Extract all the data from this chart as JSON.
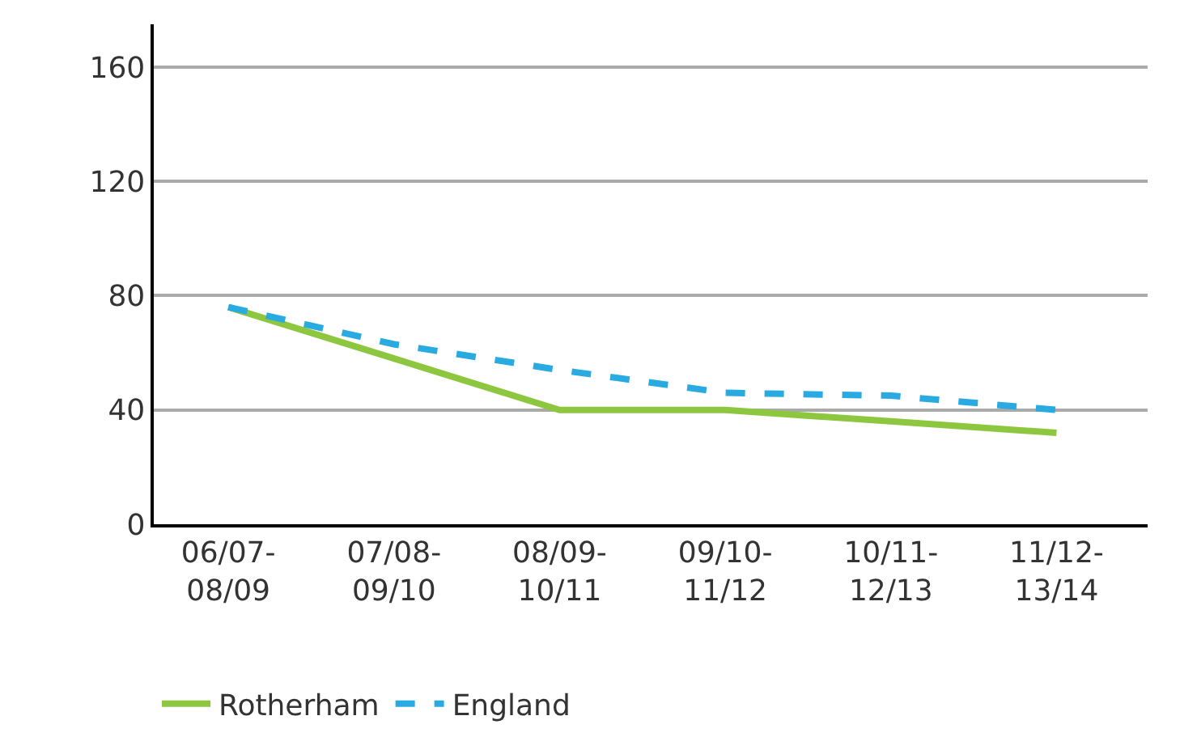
{
  "chart_data": {
    "type": "line",
    "categories": [
      "06/07-\n08/09",
      "07/08-\n09/10",
      "08/09-\n10/11",
      "09/10-\n11/12",
      "10/11-\n12/13",
      "11/12-\n13/14"
    ],
    "series": [
      {
        "name": "Rotherham",
        "color": "#8dc63f",
        "line_style": "solid",
        "values": [
          76,
          58,
          40,
          40,
          36,
          32
        ]
      },
      {
        "name": "England",
        "color": "#29abe2",
        "line_style": "dashed",
        "values": [
          76,
          63,
          54,
          46,
          45,
          40
        ]
      }
    ],
    "ylim": [
      0,
      175
    ],
    "yticks": [
      0,
      40,
      80,
      120,
      160
    ],
    "grid": "y",
    "legend": "bottom",
    "marker": "none"
  }
}
